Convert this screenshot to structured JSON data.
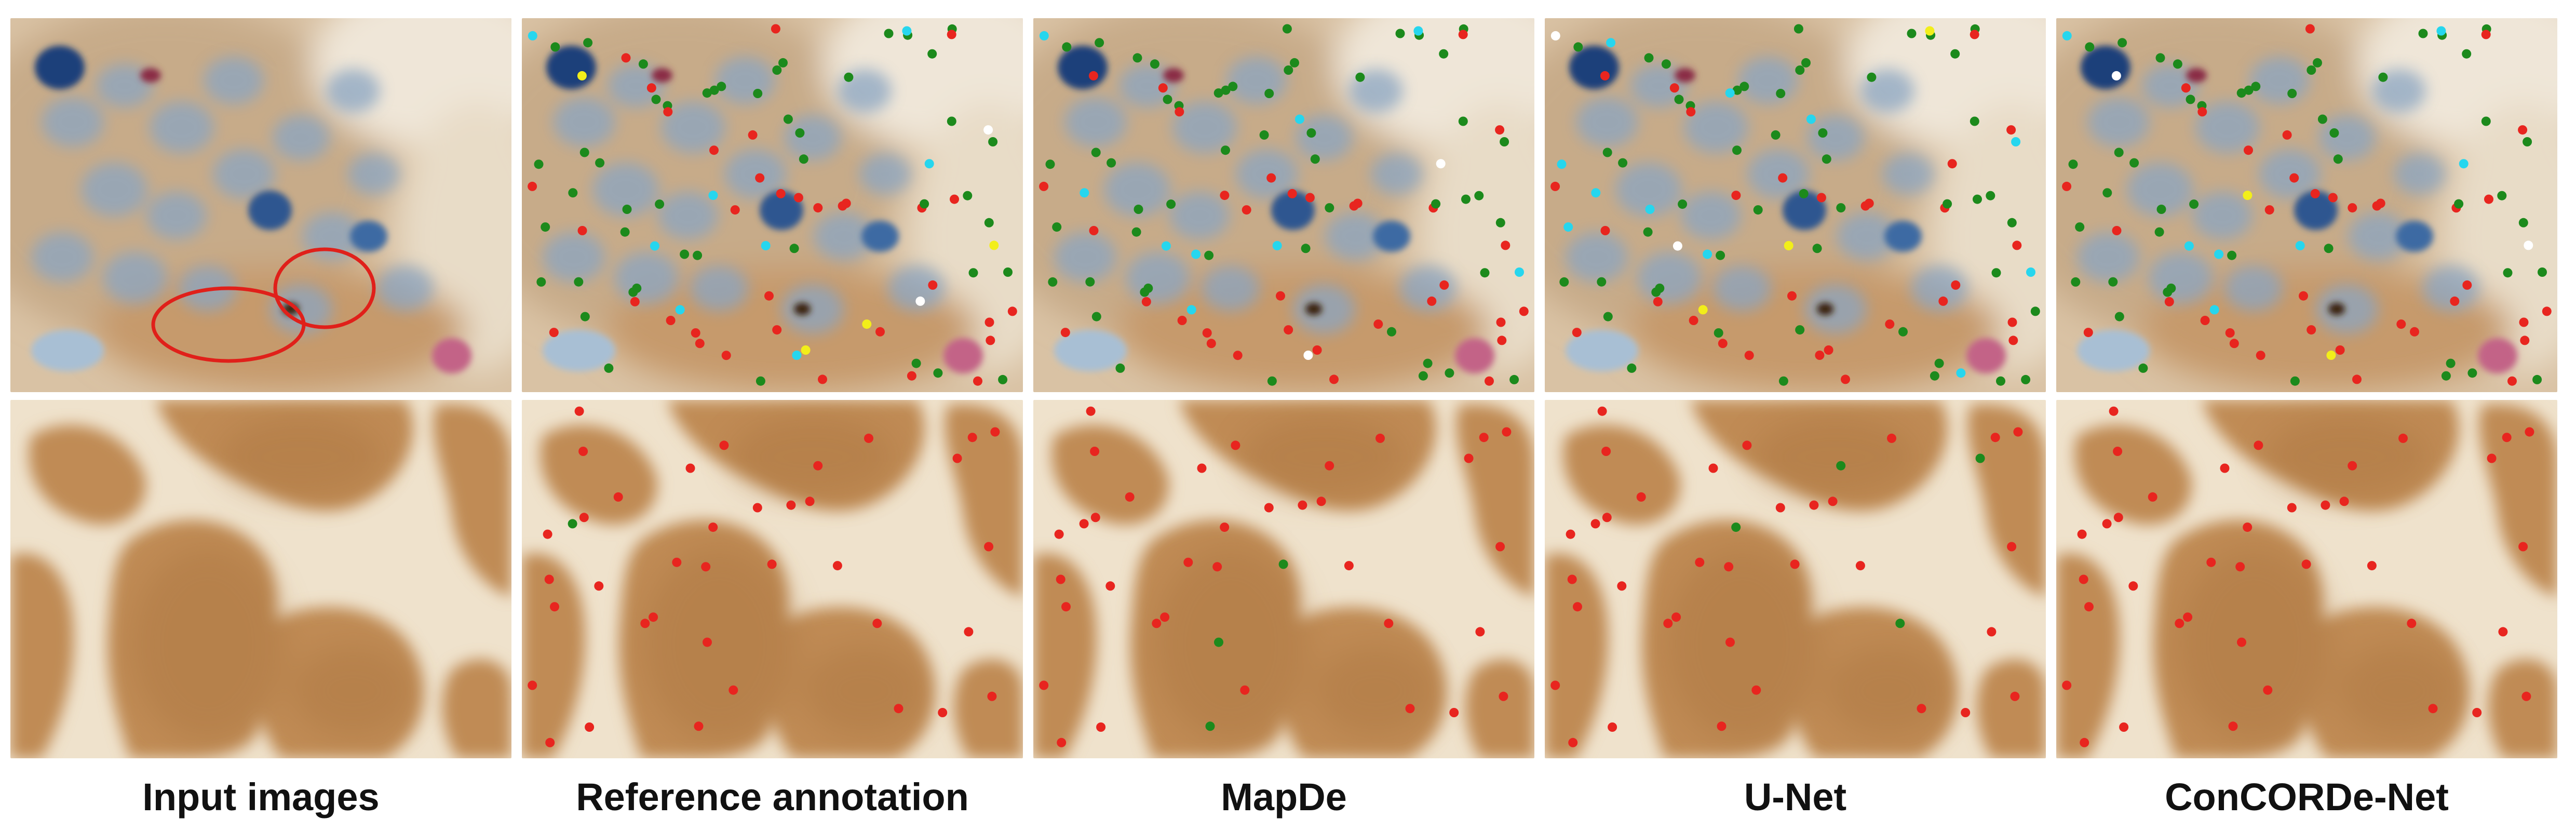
{
  "columns": [
    {
      "id": "input",
      "caption": "Input images"
    },
    {
      "id": "reference",
      "caption": "Reference annotation"
    },
    {
      "id": "mapde",
      "caption": "MapDe"
    },
    {
      "id": "unet",
      "caption": "U-Net"
    },
    {
      "id": "concorde",
      "caption": "ConCORDe-Net"
    }
  ],
  "colors": {
    "background": "#ffffff",
    "caption_text": "#111111",
    "dot_red": "#e8251f",
    "dot_green": "#1c8a1c",
    "dot_cyan": "#26d6ee",
    "dot_yellow": "#f2ee1a",
    "dot_white": "#ffffff",
    "highlight_ring": "#e0201a",
    "tissue_blue": "#6f93ba",
    "tissue_dark_blue": "#1c3f7a",
    "tissue_brown": "#c08b55",
    "background_cream": "#f2e8d7"
  }
}
